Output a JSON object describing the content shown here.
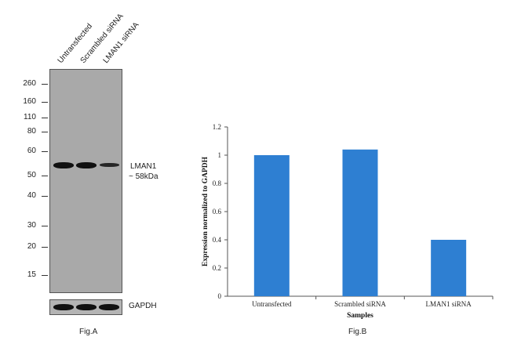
{
  "fig_a": {
    "caption": "Fig.A",
    "lanes": [
      "Untransfected",
      "Scrambled siRNA",
      "LMAN1 siRNA"
    ],
    "mw_markers": [
      "260",
      "160",
      "110",
      "80",
      "60",
      "50",
      "40",
      "30",
      "20",
      "15"
    ],
    "target_label_line1": "LMAN1",
    "target_label_line2": "~ 58kDa",
    "loading_control": "GAPDH"
  },
  "fig_b": {
    "caption": "Fig.B"
  },
  "chart_data": {
    "type": "bar",
    "categories": [
      "Untransfected",
      "Scrambled siRNA",
      "LMAN1 siRNA"
    ],
    "values": [
      1.0,
      1.04,
      0.4
    ],
    "xlabel": "Samples",
    "ylabel": "Expression normalized to GAPDH",
    "ylim": [
      0,
      1.2
    ],
    "yticks": [
      "0",
      "0.2",
      "0.4",
      "0.6",
      "0.8",
      "1",
      "1.2"
    ],
    "bar_color": "#2e7fd2",
    "grid": false
  }
}
